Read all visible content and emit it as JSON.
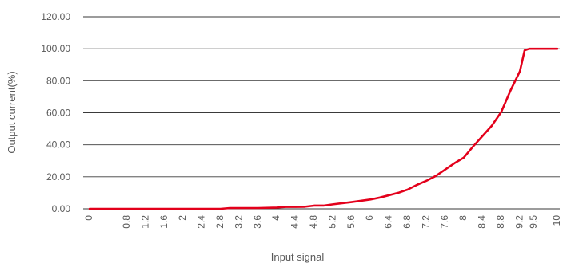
{
  "chart_data": {
    "type": "line",
    "title": "",
    "xlabel": "Input signal",
    "ylabel": "Output current(%)",
    "ylim": [
      0,
      120
    ],
    "yticks": [
      "0.00",
      "20.00",
      "40.00",
      "60.00",
      "80.00",
      "100.00",
      "120.00"
    ],
    "categories": [
      "0",
      "0.8",
      "1.2",
      "1.6",
      "2",
      "2.4",
      "2.8",
      "3.2",
      "3.6",
      "4",
      "4.4",
      "4.8",
      "5.2",
      "5.6",
      "6",
      "6.4",
      "6.8",
      "7.2",
      "7.6",
      "8",
      "8.4",
      "8.8",
      "9.2",
      "9.5",
      "10"
    ],
    "grid": true,
    "legend": "none",
    "series": [
      {
        "color": "#e3001b",
        "x": [
          0,
          0.4,
          0.8,
          1.2,
          1.6,
          2,
          2.4,
          2.6,
          2.8,
          3.0,
          3.2,
          3.6,
          4,
          4.2,
          4.4,
          4.6,
          4.8,
          5.0,
          5.2,
          5.6,
          6,
          6.2,
          6.4,
          6.6,
          6.8,
          7.0,
          7.2,
          7.4,
          7.6,
          7.8,
          8,
          8.2,
          8.4,
          8.6,
          8.8,
          9.0,
          9.2,
          9.3,
          9.4,
          9.5,
          9.75,
          10
        ],
        "y": [
          0,
          0,
          0,
          0,
          0,
          0,
          0,
          0,
          0,
          0.5,
          0.5,
          0.5,
          0.8,
          1.2,
          1.2,
          1.3,
          2,
          2,
          2.8,
          4.2,
          5.8,
          7,
          8.5,
          10,
          12,
          15,
          17.5,
          20.5,
          24.5,
          28.5,
          32,
          39,
          45.5,
          52,
          60.5,
          74,
          86,
          99,
          100,
          100,
          100,
          100
        ]
      }
    ]
  }
}
